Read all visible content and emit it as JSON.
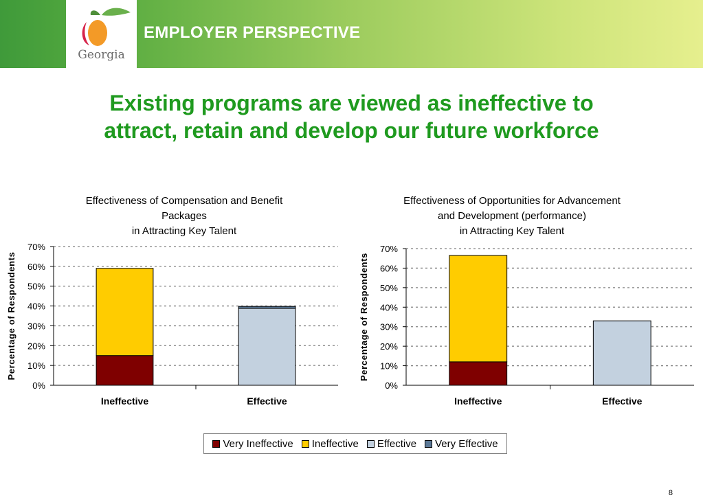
{
  "header": {
    "logo_text": "Georgia",
    "section_title": "EMPLOYER PERSPECTIVE",
    "colors": {
      "banner_start": "#3f9a3a",
      "banner_end": "#e6ef8e",
      "headline": "#1f9a1f"
    }
  },
  "headline": {
    "line1": "Existing programs are viewed as ineffective to",
    "line2": "attract, retain and develop our future workforce"
  },
  "legend": {
    "items": [
      {
        "label": "Very Ineffective",
        "color": "#7f0000"
      },
      {
        "label": "Ineffective",
        "color": "#ffcc00"
      },
      {
        "label": "Effective",
        "color": "#c3d1df"
      },
      {
        "label": "Very Effective",
        "color": "#5b7896"
      }
    ]
  },
  "page_number": "8",
  "chart_data": [
    {
      "type": "bar",
      "stacked": true,
      "title_lines": [
        "Effectiveness of Compensation and Benefit",
        "Packages"
      ],
      "subtitle": "in Attracting Key Talent",
      "xlabel": "",
      "ylabel": "Percentage of Respondents",
      "categories": [
        "Ineffective",
        "Effective"
      ],
      "ylim": [
        0,
        70
      ],
      "yticks": [
        "0%",
        "10%",
        "20%",
        "30%",
        "40%",
        "50%",
        "60%",
        "70%"
      ],
      "grid": true,
      "legend_position": "bottom",
      "series": [
        {
          "name": "Very Ineffective",
          "color": "#7f0000",
          "values": [
            15,
            0
          ]
        },
        {
          "name": "Ineffective",
          "color": "#ffcc00",
          "values": [
            44,
            0
          ]
        },
        {
          "name": "Effective",
          "color": "#c3d1df",
          "values": [
            0,
            38.8
          ]
        },
        {
          "name": "Very Effective",
          "color": "#5b7896",
          "values": [
            0,
            1
          ]
        }
      ]
    },
    {
      "type": "bar",
      "stacked": true,
      "title_lines": [
        "Effectiveness of Opportunities for Advancement",
        "and Development (performance)"
      ],
      "subtitle": "in Attracting Key Talent",
      "xlabel": "",
      "ylabel": "Percentage of Respondents",
      "categories": [
        "Ineffective",
        "Effective"
      ],
      "ylim": [
        0,
        70
      ],
      "yticks": [
        "0%",
        "10%",
        "20%",
        "30%",
        "40%",
        "50%",
        "60%",
        "70%"
      ],
      "grid": true,
      "legend_position": "bottom",
      "series": [
        {
          "name": "Very Ineffective",
          "color": "#7f0000",
          "values": [
            12,
            0
          ]
        },
        {
          "name": "Ineffective",
          "color": "#ffcc00",
          "values": [
            54.5,
            0
          ]
        },
        {
          "name": "Effective",
          "color": "#c3d1df",
          "values": [
            0,
            33
          ]
        },
        {
          "name": "Very Effective",
          "color": "#5b7896",
          "values": [
            0,
            0
          ]
        }
      ]
    }
  ]
}
